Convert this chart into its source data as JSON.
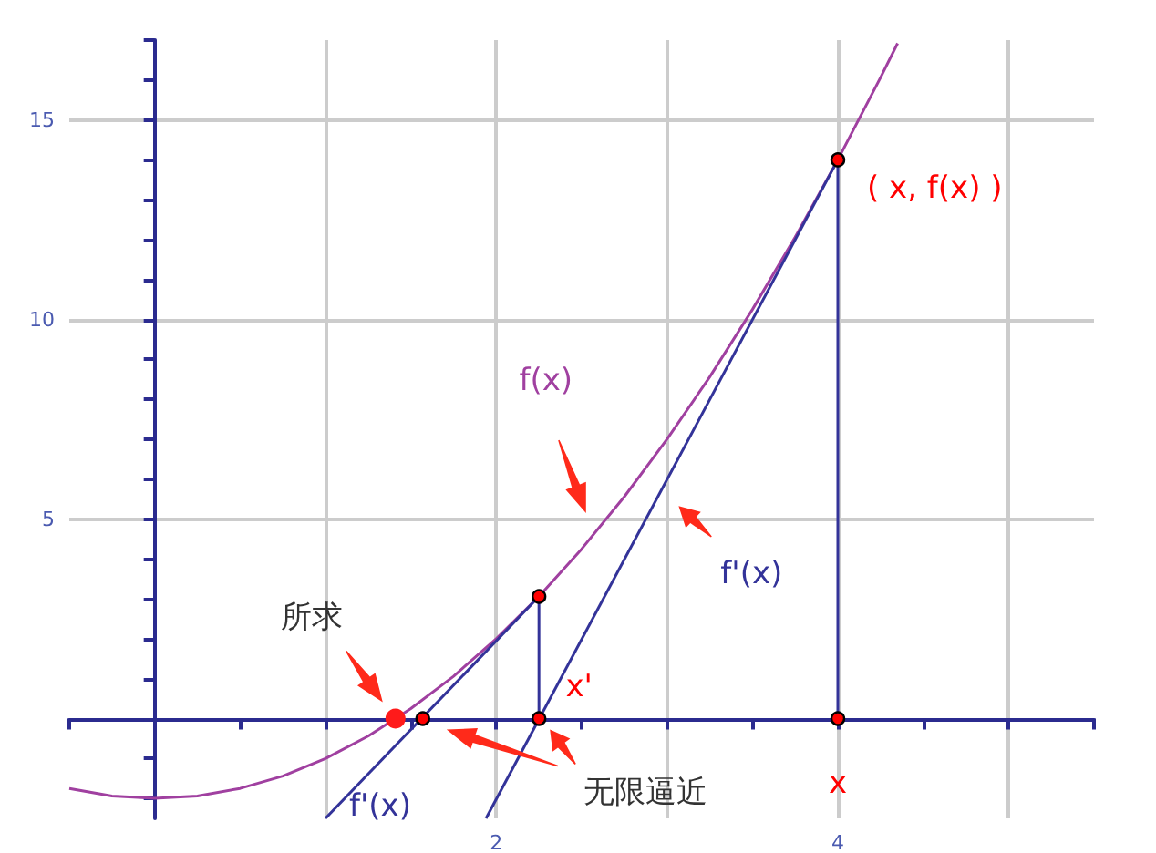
{
  "chart_data": {
    "type": "line",
    "xlim": [
      -0.5,
      5.5
    ],
    "xticks": [
      {
        "value": -0.5,
        "label": null
      },
      {
        "value": 0,
        "label": null
      },
      {
        "value": 0.5,
        "label": null
      },
      {
        "value": 1,
        "label": null
      },
      {
        "value": 1.5,
        "label": null
      },
      2,
      {
        "value": 2.5,
        "label": null
      },
      {
        "value": 3,
        "label": null
      },
      {
        "value": 3.5,
        "label": null
      },
      4,
      {
        "value": 4.5,
        "label": null
      },
      {
        "value": 5,
        "label": null
      },
      {
        "value": 5.5,
        "label": null
      }
    ],
    "ylim": [
      -2.5,
      17
    ],
    "yticks": [
      {
        "value": -2,
        "label": null
      },
      {
        "value": -1,
        "label": null
      },
      {
        "value": 0,
        "label": null
      },
      {
        "value": 1,
        "label": null
      },
      {
        "value": 2,
        "label": null
      },
      {
        "value": 3,
        "label": null
      },
      {
        "value": 4,
        "label": null
      },
      5,
      {
        "value": 6,
        "label": null
      },
      {
        "value": 7,
        "label": null
      },
      {
        "value": 8,
        "label": null
      },
      {
        "value": 9,
        "label": null
      },
      10,
      {
        "value": 11,
        "label": null
      },
      {
        "value": 12,
        "label": null
      },
      {
        "value": 13,
        "label": null
      },
      {
        "value": 14,
        "label": null
      },
      15,
      {
        "value": 16,
        "label": null
      },
      {
        "value": 17,
        "label": null
      }
    ],
    "grid": true,
    "series": [
      {
        "name": "f(x)",
        "type": "line",
        "color": "#a040a0",
        "x": [
          -0.5,
          -0.25,
          0,
          0.25,
          0.5,
          0.75,
          1,
          1.25,
          1.5,
          1.75,
          2,
          2.25,
          2.5,
          2.75,
          3,
          3.25,
          3.5,
          3.75,
          4,
          4.25,
          4.35
        ],
        "values": [
          -1.75,
          -1.94,
          -2,
          -1.94,
          -1.75,
          -1.44,
          -1,
          -0.44,
          0.25,
          1.06,
          2,
          3.06,
          4.25,
          5.56,
          7,
          8.56,
          10.25,
          12.06,
          14,
          16.06,
          16.92
        ]
      },
      {
        "name": "f'(x)",
        "type": "line",
        "color": "#333399",
        "x": [
          1.94,
          4
        ],
        "values": [
          -2.5,
          14
        ]
      },
      {
        "name": "f'(x)",
        "type": "line",
        "color": "#333399",
        "x": [
          1,
          2.25
        ],
        "values": [
          -2.5,
          3.06
        ]
      },
      {
        "type": "line",
        "color": "#333399",
        "x": [
          4,
          4
        ],
        "values": [
          0,
          14
        ]
      },
      {
        "type": "line",
        "color": "#333399",
        "x": [
          2.25,
          2.25
        ],
        "values": [
          0,
          3.06
        ]
      },
      {
        "type": "scatter",
        "color": "#ff0000",
        "x": [
          4,
          4,
          2.25,
          2.25,
          1.57
        ],
        "values": [
          14,
          0,
          3.06,
          0,
          0
        ]
      },
      {
        "type": "scatter",
        "color": "#ff1a1a",
        "x": [
          1.41
        ],
        "values": [
          0
        ]
      }
    ],
    "annotations": [
      "所求",
      "无限逼近",
      "x'",
      "x",
      "( x, f(x) )"
    ]
  }
}
